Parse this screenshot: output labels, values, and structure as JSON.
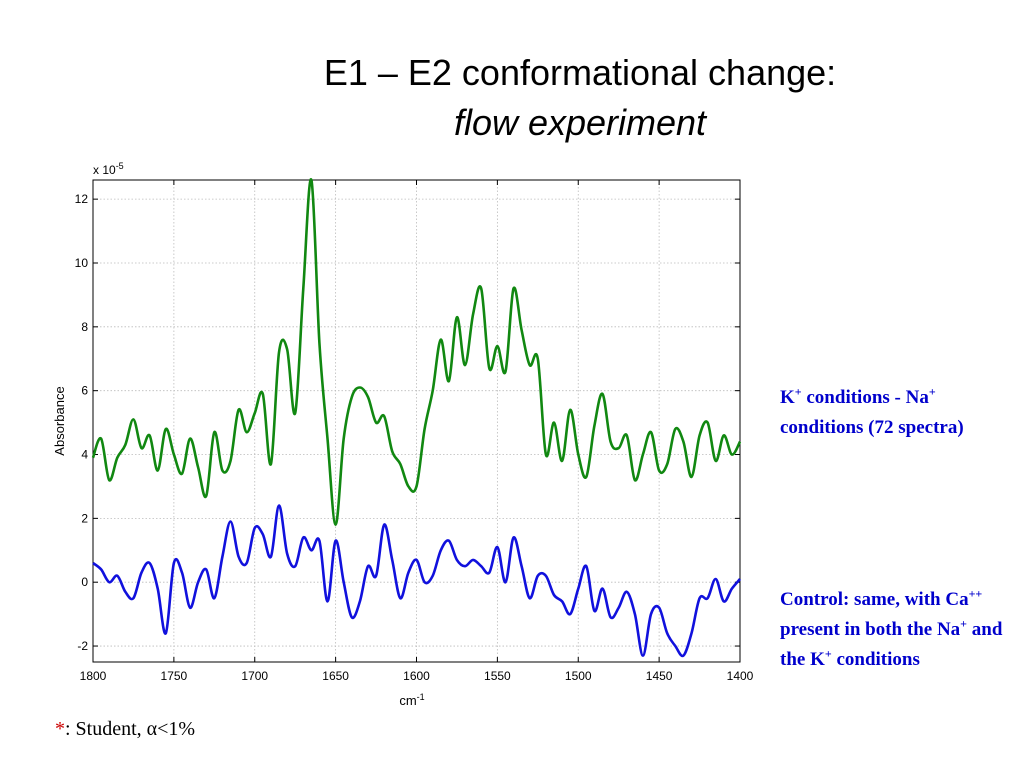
{
  "slide": {
    "title_line1": "E1 – E2 conformational change:",
    "title_line2": "flow experiment",
    "legend_green": {
      "pre": "K",
      "sup1": "+",
      "mid": " conditions - Na",
      "sup2": "+",
      "post": " conditions (72 spectra)"
    },
    "legend_blue": {
      "p1": "Control: same, with Ca",
      "s1": "++",
      "p2": " present in both the Na",
      "s2": "+",
      "p3": " and the K",
      "s3": "+",
      "p4": " conditions"
    },
    "note": {
      "star": "*",
      "text": ": Student, α<1%"
    }
  },
  "chart_data": {
    "type": "line",
    "xlabel": "cm",
    "xlabel_sup": "-1",
    "ylabel": "Absorbance",
    "y_multiplier": "x 10",
    "y_multiplier_sup": "-5",
    "xlim": [
      1800,
      1400
    ],
    "ylim": [
      -2.5,
      12.6
    ],
    "xticks": [
      1800,
      1750,
      1700,
      1650,
      1600,
      1550,
      1500,
      1450,
      1400
    ],
    "yticks": [
      -2,
      0,
      2,
      4,
      6,
      8,
      10,
      12
    ],
    "grid": true,
    "colors": {
      "green": "#118811",
      "blue": "#1111dd"
    },
    "series": [
      {
        "color": "green",
        "x": [
          1800,
          1795,
          1790,
          1785,
          1780,
          1775,
          1770,
          1765,
          1760,
          1755,
          1750,
          1745,
          1740,
          1735,
          1730,
          1725,
          1720,
          1715,
          1710,
          1705,
          1700,
          1695,
          1690,
          1685,
          1680,
          1675,
          1670,
          1665,
          1660,
          1655,
          1650,
          1645,
          1640,
          1635,
          1630,
          1625,
          1620,
          1615,
          1610,
          1605,
          1600,
          1595,
          1590,
          1585,
          1580,
          1575,
          1570,
          1565,
          1560,
          1555,
          1550,
          1545,
          1540,
          1535,
          1530,
          1525,
          1520,
          1515,
          1510,
          1505,
          1500,
          1495,
          1490,
          1485,
          1480,
          1475,
          1470,
          1465,
          1460,
          1455,
          1450,
          1445,
          1440,
          1435,
          1430,
          1425,
          1420,
          1415,
          1410,
          1405,
          1400
        ],
        "y": [
          3.9,
          4.5,
          3.2,
          3.9,
          4.3,
          5.1,
          4.2,
          4.6,
          3.5,
          4.8,
          4.0,
          3.4,
          4.5,
          3.6,
          2.7,
          4.7,
          3.5,
          3.8,
          5.4,
          4.7,
          5.3,
          5.9,
          3.7,
          7.2,
          7.3,
          5.3,
          9.2,
          12.6,
          7.5,
          4.5,
          1.8,
          4.5,
          5.8,
          6.1,
          5.8,
          5.0,
          5.2,
          4.1,
          3.7,
          3.0,
          3.0,
          4.8,
          6.0,
          7.6,
          6.3,
          8.3,
          6.8,
          8.4,
          9.2,
          6.7,
          7.4,
          6.6,
          9.2,
          7.9,
          6.8,
          7.0,
          4.0,
          5.0,
          3.8,
          5.4,
          4.0,
          3.3,
          4.9,
          5.9,
          4.4,
          4.2,
          4.6,
          3.2,
          4.0,
          4.7,
          3.5,
          3.7,
          4.8,
          4.4,
          3.3,
          4.6,
          5.0,
          3.8,
          4.6,
          4.0,
          4.4
        ]
      },
      {
        "color": "blue",
        "x": [
          1800,
          1795,
          1790,
          1785,
          1780,
          1775,
          1770,
          1765,
          1760,
          1755,
          1750,
          1745,
          1740,
          1735,
          1730,
          1725,
          1720,
          1715,
          1710,
          1705,
          1700,
          1695,
          1690,
          1685,
          1680,
          1675,
          1670,
          1665,
          1660,
          1655,
          1650,
          1645,
          1640,
          1635,
          1630,
          1625,
          1620,
          1615,
          1610,
          1605,
          1600,
          1595,
          1590,
          1585,
          1580,
          1575,
          1570,
          1565,
          1560,
          1555,
          1550,
          1545,
          1540,
          1535,
          1530,
          1525,
          1520,
          1515,
          1510,
          1505,
          1500,
          1495,
          1490,
          1485,
          1480,
          1475,
          1470,
          1465,
          1460,
          1455,
          1450,
          1445,
          1440,
          1435,
          1430,
          1425,
          1420,
          1415,
          1410,
          1405,
          1400
        ],
        "y": [
          0.6,
          0.4,
          0.0,
          0.2,
          -0.3,
          -0.5,
          0.3,
          0.6,
          -0.2,
          -1.6,
          0.6,
          0.3,
          -0.8,
          0.0,
          0.4,
          -0.5,
          0.8,
          1.9,
          0.8,
          0.6,
          1.7,
          1.5,
          0.8,
          2.4,
          0.9,
          0.5,
          1.4,
          1.0,
          1.3,
          -0.6,
          1.3,
          0.0,
          -1.1,
          -0.6,
          0.5,
          0.2,
          1.8,
          0.7,
          -0.5,
          0.3,
          0.7,
          0.0,
          0.2,
          1.0,
          1.3,
          0.7,
          0.5,
          0.7,
          0.5,
          0.3,
          1.1,
          0.0,
          1.4,
          0.5,
          -0.5,
          0.2,
          0.2,
          -0.4,
          -0.6,
          -1.0,
          -0.2,
          0.5,
          -0.9,
          -0.2,
          -1.1,
          -0.8,
          -0.3,
          -1.0,
          -2.3,
          -1.0,
          -0.8,
          -1.6,
          -2.0,
          -2.3,
          -1.6,
          -0.5,
          -0.5,
          0.1,
          -0.6,
          -0.2,
          0.1
        ]
      }
    ]
  }
}
